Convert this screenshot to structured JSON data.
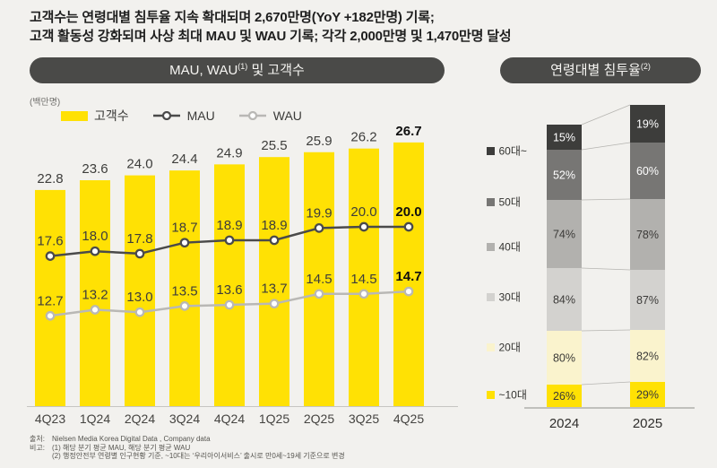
{
  "header": {
    "line1": "고객수는 연령대별 침투율 지속 확대되며 2,670만명(YoY +182만명) 기록;",
    "line2": "고객 활동성 강화되며 사상 최대 MAU 및 WAU 기록; 각각 2,000만명 및 1,470만명 달성"
  },
  "left_chart": {
    "title_pre": "MAU, WAU",
    "title_sup": "(1)",
    "title_post": " 및 고객수",
    "unit_label": "(백만명)"
  },
  "right_chart": {
    "title_pre": "연령대별 침투율",
    "title_sup": "(2)"
  },
  "chart_data": [
    {
      "id": "mau-wau-customers",
      "type": "bar+line",
      "title": "MAU, WAU(1) 및 고객수",
      "unit": "백만명",
      "yaxis": "hidden",
      "emphasize_last_column": true,
      "categories": [
        "4Q23",
        "1Q24",
        "2Q24",
        "3Q24",
        "4Q24",
        "1Q25",
        "2Q25",
        "3Q25",
        "4Q25"
      ],
      "series": [
        {
          "id": "customers",
          "name": "고객수",
          "kind": "bar",
          "color": "#ffe104",
          "values": [
            22.8,
            23.6,
            24.0,
            24.4,
            24.9,
            25.5,
            25.9,
            26.2,
            26.7
          ]
        },
        {
          "id": "mau",
          "name": "MAU",
          "kind": "line",
          "color": "#4a4a4a",
          "values": [
            17.6,
            18.0,
            17.8,
            18.7,
            18.9,
            18.9,
            19.9,
            20.0,
            20.0
          ]
        },
        {
          "id": "wau",
          "name": "WAU",
          "kind": "line",
          "color": "#b9b8b5",
          "values": [
            12.7,
            13.2,
            13.0,
            13.5,
            13.6,
            13.7,
            14.5,
            14.5,
            14.7
          ]
        }
      ]
    },
    {
      "id": "age-penetration",
      "type": "stacked-bar",
      "title": "연령대별 침투율(2)",
      "categories": [
        "2024",
        "2025"
      ],
      "value_suffix": "%",
      "stack_order": "top-to-bottom",
      "series": [
        {
          "id": "age-60plus",
          "label": "60대~",
          "color": "#3d3d3b",
          "text_color": "#ffffff",
          "values": [
            15,
            19
          ]
        },
        {
          "id": "age-50s",
          "label": "50대",
          "color": "#777674",
          "text_color": "#ffffff",
          "values": [
            52,
            60
          ]
        },
        {
          "id": "age-40s",
          "label": "40대",
          "color": "#b2b1ae",
          "text_color": "#3b3a38",
          "values": [
            74,
            78
          ]
        },
        {
          "id": "age-30s",
          "label": "30대",
          "color": "#d3d2cf",
          "text_color": "#3b3a38",
          "values": [
            84,
            87
          ]
        },
        {
          "id": "age-20s",
          "label": "20대",
          "color": "#faf3cd",
          "text_color": "#3b3a38",
          "values": [
            80,
            82
          ]
        },
        {
          "id": "age-10s",
          "label": "~10대",
          "color": "#ffe104",
          "text_color": "#3b3a38",
          "values": [
            26,
            29
          ]
        }
      ]
    }
  ],
  "footer": {
    "source_label": "출처:",
    "source_text": "Nielsen Media Korea Digital Data , Company data",
    "note_label": "비고:",
    "note1": "(1) 해당 분기 평균 MAU, 해당 분기 평균 WAU",
    "note2": "(2) 행정안전부 연령별 인구현황 기준, ~10대는 ‘우리아이서비스’ 출시로 만0세~19세 기준으로 변경"
  },
  "colors": {
    "background": "#f2f1ee",
    "pill_bg": "#4a4a48",
    "pill_text": "#f6f5f2",
    "accent_yellow": "#ffe104",
    "axis_light": "#c6c5c2",
    "axis_dark": "#8f8e8b",
    "connector": "#b5b4b0",
    "label_text": "#3d3d3b",
    "emphasis_text": "#0f0f0f"
  }
}
